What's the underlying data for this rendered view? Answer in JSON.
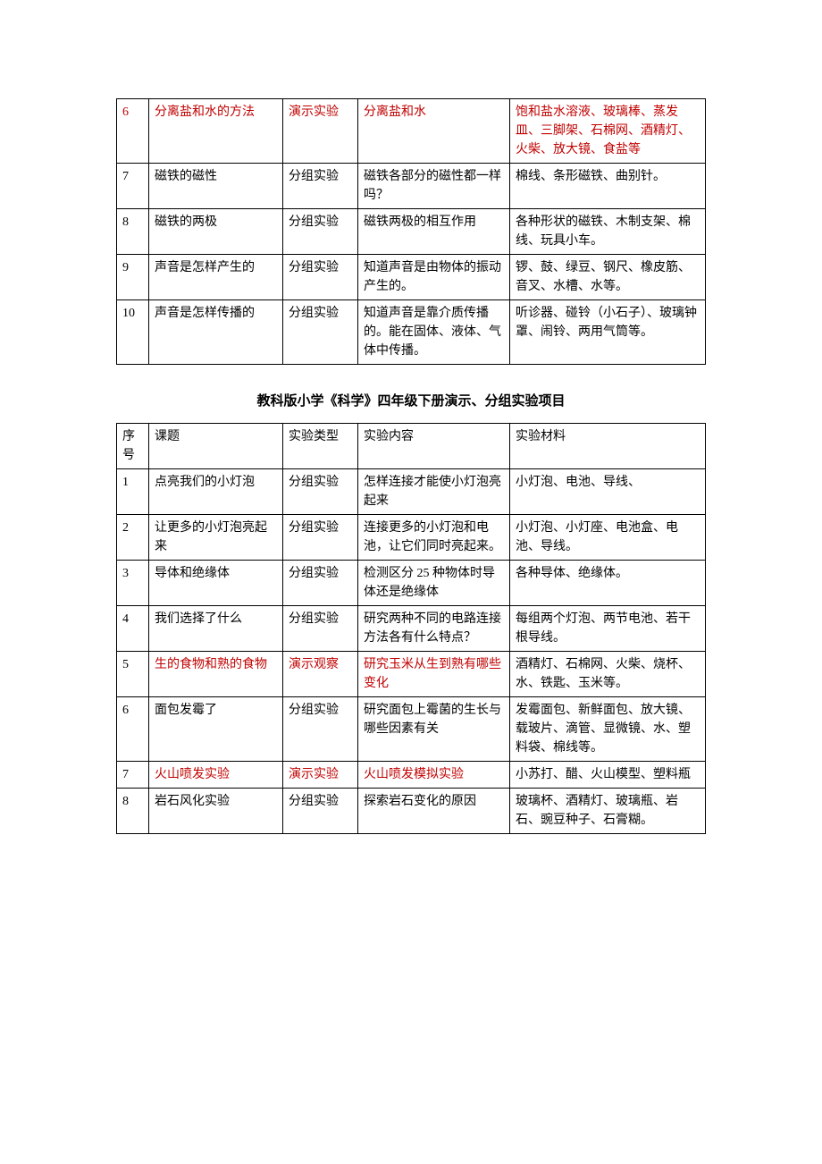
{
  "table1": {
    "columns": {
      "num_width": 36,
      "topic_width": 150,
      "type_width": 84,
      "content_width": 170
    },
    "rows": [
      {
        "num": "6",
        "topic": "分离盐和水的方法",
        "type": "演示实验",
        "content": "分离盐和水",
        "materials": "饱和盐水溶液、玻璃棒、蒸发皿、三脚架、石棉网、酒精灯、火柴、放大镜、食盐等",
        "red": true
      },
      {
        "num": "7",
        "topic": "磁铁的磁性",
        "type": "分组实验",
        "content": "磁铁各部分的磁性都一样吗？",
        "materials": "棉线、条形磁铁、曲别针。",
        "red": false
      },
      {
        "num": "8",
        "topic": "磁铁的两极",
        "type": "分组实验",
        "content": "磁铁两极的相互作用",
        "materials": "各种形状的磁铁、木制支架、棉线、玩具小车。",
        "red": false
      },
      {
        "num": "9",
        "topic": "声音是怎样产生的",
        "type": "分组实验",
        "content": "知道声音是由物体的振动产生的。",
        "materials": "锣、鼓、绿豆、钢尺、橡皮筋、音叉、水槽、水等。",
        "red": false
      },
      {
        "num": "10",
        "topic": "声音是怎样传播的",
        "type": "分组实验",
        "content": "知道声音是靠介质传播的。能在固体、液体、气体中传播。",
        "materials": "听诊器、碰铃（小石子）、玻璃钟罩、闹铃、两用气筒等。",
        "red": false
      }
    ]
  },
  "heading": "教科版小学《科学》四年级下册演示、分组实验项目",
  "table2": {
    "headers": {
      "num": "序号",
      "topic": "课题",
      "type": "实验类型",
      "content": "实验内容",
      "materials": "实验材料"
    },
    "rows": [
      {
        "num": "1",
        "topic": "点亮我们的小灯泡",
        "type": "分组实验",
        "content": "怎样连接才能使小灯泡亮起来",
        "materials": "小灯泡、电池、导线、",
        "red": false
      },
      {
        "num": "2",
        "topic": "让更多的小灯泡亮起来",
        "type": "分组实验",
        "content": "连接更多的小灯泡和电池，让它们同时亮起来。",
        "materials": "小灯泡、小灯座、电池盒、电池、导线。",
        "red": false
      },
      {
        "num": "3",
        "topic": "导体和绝缘体",
        "type": "分组实验",
        "content": "检测区分 25 种物体时导体还是绝缘体",
        "materials": "各种导体、绝缘体。",
        "red": false
      },
      {
        "num": "4",
        "topic": "我们选择了什么",
        "type": "分组实验",
        "content": "研究两种不同的电路连接方法各有什么特点？",
        "materials": "每组两个灯泡、两节电池、若干根导线。",
        "red": false
      },
      {
        "num": "5",
        "topic": "生的食物和熟的食物",
        "type": "演示观察",
        "content": "研究玉米从生到熟有哪些变化",
        "materials": "酒精灯、石棉网、火柴、烧杯、水、铁匙、玉米等。",
        "red": true
      },
      {
        "num": "6",
        "topic": "面包发霉了",
        "type": "分组实验",
        "content": "研究面包上霉菌的生长与哪些因素有关",
        "materials": "发霉面包、新鲜面包、放大镜、载玻片、滴管、显微镜、水、塑料袋、棉线等。",
        "red": false
      },
      {
        "num": "7",
        "topic": "火山喷发实验",
        "type": "演示实验",
        "content": "火山喷发模拟实验",
        "materials": "小苏打、醋、火山模型、塑料瓶",
        "red": true
      },
      {
        "num": "8",
        "topic": "岩石风化实验",
        "type": "分组实验",
        "content": "探索岩石变化的原因",
        "materials": "玻璃杯、酒精灯、玻璃瓶、岩石、豌豆种子、石膏糊。",
        "red": false
      }
    ]
  },
  "colors": {
    "red": "#c00000",
    "black": "#000000"
  },
  "typography": {
    "body_fontsize": 14,
    "heading_fontsize": 15
  }
}
